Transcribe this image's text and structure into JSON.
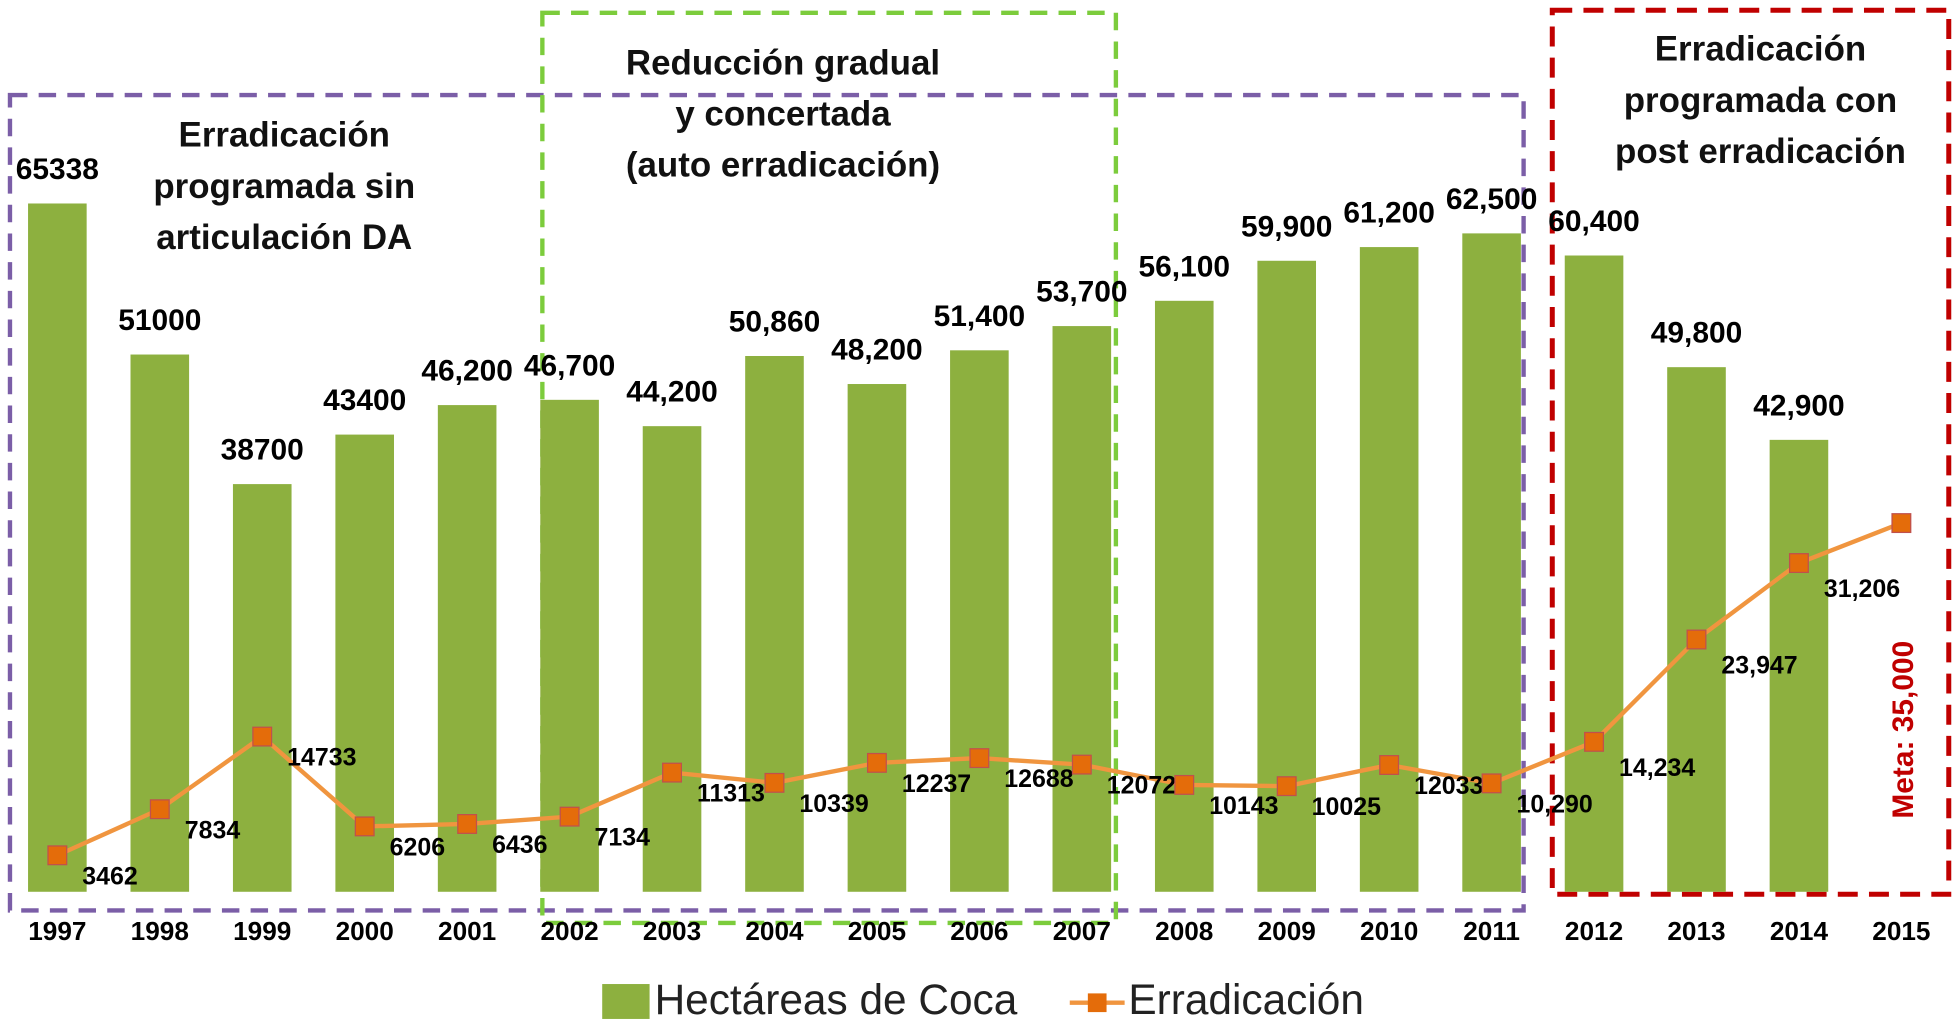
{
  "chart_data": {
    "type": "bar_line",
    "categories": [
      "1997",
      "1998",
      "1999",
      "2000",
      "2001",
      "2002",
      "2003",
      "2004",
      "2005",
      "2006",
      "2007",
      "2008",
      "2009",
      "2010",
      "2011",
      "2012",
      "2013",
      "2014",
      "2015"
    ],
    "ylim": [
      0,
      70000
    ],
    "series": [
      {
        "name": "Hectáreas de Coca",
        "type": "bar",
        "color": "#8db03f",
        "values": [
          65338,
          51000,
          38700,
          43400,
          46200,
          46700,
          44200,
          50860,
          48200,
          51400,
          53700,
          56100,
          59900,
          61200,
          62500,
          60400,
          49800,
          42900,
          null
        ],
        "value_labels": [
          "65338",
          "51000",
          "38700",
          "43400",
          "46,200",
          "46,700",
          "44,200",
          "50,860",
          "48,200",
          "51,400",
          "53,700",
          "56,100",
          "59,900",
          "61,200",
          "62,500",
          "60,400",
          "49,800",
          "42,900",
          null
        ]
      },
      {
        "name": "Erradicación",
        "type": "line",
        "color": "#f0953f",
        "marker_color": "#e46c0a",
        "values": [
          3462,
          7834,
          14733,
          6206,
          6436,
          7134,
          11313,
          10339,
          12237,
          12688,
          12072,
          10143,
          10025,
          12033,
          10290,
          14234,
          23947,
          31206,
          35000
        ],
        "value_labels": [
          "3462",
          "7834",
          "14733",
          "6206",
          "6436",
          "7134",
          "11313",
          "10339",
          "12237",
          "12688",
          "12072",
          "10143",
          "10025",
          "12033",
          "10,290",
          "14,234",
          "23,947",
          "31,206",
          "Meta: 35,000"
        ]
      }
    ],
    "annotations": [
      [
        "Erradicación",
        "programada sin",
        "articulación DA"
      ],
      [
        "Reducción gradual",
        "y concertada",
        "(auto erradicación)"
      ],
      [
        "Erradicación",
        "programada con",
        "post erradicación"
      ]
    ]
  }
}
